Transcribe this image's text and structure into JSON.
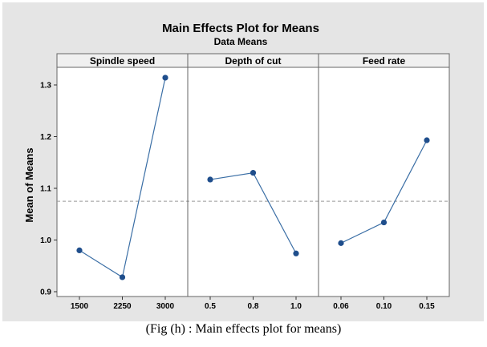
{
  "chart_data": {
    "type": "line",
    "title": "Main Effects Plot for Means",
    "subtitle": "Data Means",
    "ylabel": "Mean of Means",
    "ylim": [
      0.9,
      1.35
    ],
    "yticks": [
      "0.9",
      "1.0",
      "1.1",
      "1.2",
      "1.3"
    ],
    "reference_line": 1.075,
    "panels": [
      {
        "name": "Spindle speed",
        "categories": [
          "1500",
          "2250",
          "3000"
        ],
        "values": [
          0.98,
          0.928,
          1.314
        ]
      },
      {
        "name": "Depth of cut",
        "categories": [
          "0.5",
          "0.8",
          "1.0"
        ],
        "values": [
          1.117,
          1.13,
          0.974
        ]
      },
      {
        "name": "Feed rate",
        "categories": [
          "0.06",
          "0.10",
          "0.15"
        ],
        "values": [
          0.994,
          1.034,
          1.193
        ]
      }
    ],
    "colors": {
      "line": "#3a6ea5",
      "marker": "#1f4e8c",
      "reference": "#999999",
      "frame_bg": "#e5e5e5",
      "plot_bg": "#ffffff",
      "strip_bg": "#f0f0f0"
    },
    "grid": false
  },
  "caption": "(Fig (h) : Main effects plot for means)"
}
